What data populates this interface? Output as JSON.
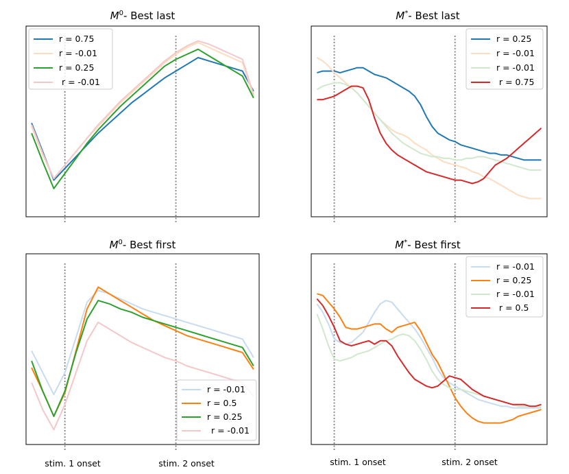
{
  "colors": {
    "blue": "#1f77b4",
    "orange": "#ff7f0e",
    "green": "#2ca02c",
    "red": "#d62728",
    "blue_faint": "#c6dbef",
    "orange_faint": "#fddcc0",
    "green_faint": "#cfe8cc",
    "red_faint": "#f4c7c8",
    "onset_line": "#808080"
  },
  "x_labels": {
    "stim1": "stim. 1 onset",
    "stim2": "stim. 2 onset"
  },
  "chart_data": [
    {
      "type": "line",
      "title": "- Best last",
      "title_math": {
        "base": "M",
        "sup": "0"
      },
      "x": [
        0,
        1,
        2,
        3,
        4,
        5,
        6,
        7,
        8,
        9,
        10,
        11,
        12,
        13,
        14,
        15,
        16,
        17,
        18,
        19,
        20
      ],
      "xlim": [
        -0.5,
        20.5
      ],
      "ylim": [
        0,
        1
      ],
      "onsets": [
        3,
        13
      ],
      "legend_position": "upper-left",
      "series": [
        {
          "name": "r = 0.75",
          "color": "blue",
          "values": [
            0.49,
            0.32,
            0.15,
            0.22,
            0.29,
            0.36,
            0.43,
            0.49,
            0.55,
            0.61,
            0.66,
            0.71,
            0.76,
            0.8,
            0.84,
            0.88,
            0.86,
            0.84,
            0.82,
            0.8,
            0.68
          ]
        },
        {
          "name": "r = -0.01",
          "color": "orange_faint",
          "values": [
            0.47,
            0.3,
            0.16,
            0.24,
            0.32,
            0.4,
            0.47,
            0.54,
            0.61,
            0.67,
            0.73,
            0.79,
            0.85,
            0.9,
            0.94,
            0.97,
            0.94,
            0.91,
            0.88,
            0.85,
            0.65
          ]
        },
        {
          "name": "r = 0.25",
          "color": "green",
          "values": [
            0.43,
            0.26,
            0.1,
            0.19,
            0.28,
            0.37,
            0.45,
            0.52,
            0.59,
            0.65,
            0.71,
            0.77,
            0.83,
            0.87,
            0.9,
            0.93,
            0.89,
            0.85,
            0.81,
            0.77,
            0.64
          ]
        },
        {
          "name": "r = -0.01",
          "color": "red_faint",
          "values": [
            0.48,
            0.31,
            0.16,
            0.24,
            0.32,
            0.4,
            0.48,
            0.55,
            0.62,
            0.68,
            0.74,
            0.8,
            0.86,
            0.91,
            0.95,
            0.98,
            0.96,
            0.93,
            0.9,
            0.87,
            0.66
          ]
        }
      ]
    },
    {
      "type": "line",
      "title": "- Best last",
      "title_math": {
        "base": "M",
        "sup": "*"
      },
      "x": [
        0,
        1,
        2,
        3,
        4,
        5,
        6,
        7,
        8,
        9,
        10,
        11,
        12,
        13,
        14,
        15,
        16,
        17,
        18,
        19,
        20,
        21,
        22,
        23,
        24,
        25,
        26,
        27,
        28,
        29,
        30,
        31,
        32,
        33,
        34,
        35,
        36,
        37,
        38,
        39
      ],
      "xlim": [
        -1,
        40
      ],
      "ylim": [
        0,
        1
      ],
      "onsets": [
        3,
        24
      ],
      "legend_position": "upper-right",
      "series": [
        {
          "name": "r = 0.25",
          "color": "blue",
          "values": [
            0.79,
            0.8,
            0.8,
            0.8,
            0.79,
            0.8,
            0.81,
            0.82,
            0.82,
            0.8,
            0.78,
            0.77,
            0.76,
            0.74,
            0.72,
            0.7,
            0.68,
            0.65,
            0.6,
            0.53,
            0.47,
            0.43,
            0.41,
            0.39,
            0.38,
            0.36,
            0.35,
            0.34,
            0.33,
            0.32,
            0.31,
            0.31,
            0.3,
            0.3,
            0.29,
            0.28,
            0.27,
            0.27,
            0.27,
            0.27
          ]
        },
        {
          "name": "r = -0.01",
          "color": "orange_faint",
          "values": [
            0.88,
            0.86,
            0.83,
            0.79,
            0.76,
            0.73,
            0.7,
            0.67,
            0.63,
            0.59,
            0.55,
            0.51,
            0.48,
            0.45,
            0.43,
            0.42,
            0.4,
            0.37,
            0.35,
            0.33,
            0.3,
            0.28,
            0.26,
            0.25,
            0.24,
            0.23,
            0.22,
            0.2,
            0.19,
            0.17,
            0.16,
            0.14,
            0.12,
            0.1,
            0.08,
            0.06,
            0.05,
            0.04,
            0.04,
            0.04
          ]
        },
        {
          "name": "r = -0.01",
          "color": "green_faint",
          "values": [
            0.69,
            0.71,
            0.72,
            0.73,
            0.73,
            0.72,
            0.7,
            0.67,
            0.63,
            0.59,
            0.55,
            0.51,
            0.47,
            0.43,
            0.4,
            0.37,
            0.35,
            0.33,
            0.31,
            0.3,
            0.29,
            0.29,
            0.28,
            0.28,
            0.27,
            0.27,
            0.28,
            0.28,
            0.29,
            0.29,
            0.28,
            0.27,
            0.26,
            0.25,
            0.24,
            0.23,
            0.22,
            0.21,
            0.21,
            0.21
          ]
        },
        {
          "name": "r = 0.75",
          "color": "red",
          "values": [
            0.63,
            0.63,
            0.64,
            0.65,
            0.67,
            0.69,
            0.71,
            0.71,
            0.7,
            0.63,
            0.52,
            0.43,
            0.37,
            0.33,
            0.3,
            0.28,
            0.26,
            0.24,
            0.22,
            0.2,
            0.19,
            0.18,
            0.17,
            0.16,
            0.15,
            0.15,
            0.14,
            0.13,
            0.14,
            0.16,
            0.2,
            0.24,
            0.26,
            0.28,
            0.31,
            0.34,
            0.37,
            0.4,
            0.43,
            0.46
          ]
        }
      ]
    },
    {
      "type": "line",
      "title": "- Best first",
      "title_math": {
        "base": "M",
        "sup": "0"
      },
      "x": [
        0,
        1,
        2,
        3,
        4,
        5,
        6,
        7,
        8,
        9,
        10,
        11,
        12,
        13,
        14,
        15,
        16,
        17,
        18,
        19,
        20
      ],
      "xlim": [
        -0.5,
        20.5
      ],
      "ylim": [
        0,
        1
      ],
      "onsets": [
        3,
        13
      ],
      "legend_position": "lower-right",
      "series": [
        {
          "name": "r = -0.01",
          "color": "blue_faint",
          "values": [
            0.49,
            0.36,
            0.23,
            0.36,
            0.57,
            0.78,
            0.85,
            0.83,
            0.8,
            0.77,
            0.74,
            0.72,
            0.7,
            0.68,
            0.66,
            0.64,
            0.62,
            0.6,
            0.58,
            0.56,
            0.45
          ]
        },
        {
          "name": "r = 0.5",
          "color": "orange",
          "values": [
            0.39,
            0.25,
            0.1,
            0.24,
            0.49,
            0.74,
            0.87,
            0.83,
            0.79,
            0.75,
            0.71,
            0.67,
            0.64,
            0.61,
            0.58,
            0.56,
            0.54,
            0.52,
            0.5,
            0.48,
            0.38
          ]
        },
        {
          "name": "r = 0.25",
          "color": "green",
          "values": [
            0.43,
            0.25,
            0.1,
            0.25,
            0.48,
            0.68,
            0.79,
            0.77,
            0.74,
            0.72,
            0.69,
            0.67,
            0.65,
            0.63,
            0.61,
            0.59,
            0.57,
            0.55,
            0.53,
            0.51,
            0.4
          ]
        },
        {
          "name": "r = -0.01",
          "color": "red_faint",
          "values": [
            0.3,
            0.14,
            0.02,
            0.17,
            0.36,
            0.55,
            0.66,
            0.62,
            0.58,
            0.54,
            0.51,
            0.48,
            0.45,
            0.43,
            0.4,
            0.38,
            0.36,
            0.34,
            0.32,
            0.3,
            0.22
          ]
        }
      ]
    },
    {
      "type": "line",
      "title": "- Best first",
      "title_math": {
        "base": "M",
        "sup": "*"
      },
      "x": [
        0,
        1,
        2,
        3,
        4,
        5,
        6,
        7,
        8,
        9,
        10,
        11,
        12,
        13,
        14,
        15,
        16,
        17,
        18,
        19,
        20,
        21,
        22,
        23,
        24,
        25,
        26,
        27,
        28,
        29,
        30,
        31,
        32,
        33,
        34,
        35,
        36,
        37,
        38,
        39
      ],
      "xlim": [
        -1,
        40
      ],
      "ylim": [
        0,
        1
      ],
      "onsets": [
        3,
        24
      ],
      "legend_position": "upper-right",
      "series": [
        {
          "name": "r = -0.01",
          "color": "blue_faint",
          "values": [
            0.77,
            0.72,
            0.65,
            0.56,
            0.54,
            0.53,
            0.54,
            0.57,
            0.6,
            0.66,
            0.72,
            0.77,
            0.79,
            0.78,
            0.74,
            0.7,
            0.66,
            0.62,
            0.57,
            0.51,
            0.45,
            0.38,
            0.33,
            0.3,
            0.28,
            0.26,
            0.24,
            0.22,
            0.2,
            0.19,
            0.18,
            0.17,
            0.16,
            0.16,
            0.15,
            0.15,
            0.15,
            0.15,
            0.15,
            0.15
          ]
        },
        {
          "name": "r = 0.25",
          "color": "orange",
          "values": [
            0.83,
            0.82,
            0.78,
            0.74,
            0.69,
            0.63,
            0.62,
            0.62,
            0.63,
            0.64,
            0.65,
            0.65,
            0.62,
            0.6,
            0.63,
            0.64,
            0.65,
            0.66,
            0.61,
            0.54,
            0.47,
            0.42,
            0.35,
            0.28,
            0.21,
            0.16,
            0.12,
            0.09,
            0.07,
            0.06,
            0.06,
            0.06,
            0.06,
            0.07,
            0.08,
            0.1,
            0.11,
            0.12,
            0.13,
            0.14
          ]
        },
        {
          "name": "r = -0.01",
          "color": "green_faint",
          "values": [
            0.71,
            0.62,
            0.52,
            0.44,
            0.43,
            0.44,
            0.45,
            0.47,
            0.48,
            0.49,
            0.51,
            0.53,
            0.55,
            0.56,
            0.58,
            0.59,
            0.58,
            0.55,
            0.5,
            0.44,
            0.37,
            0.32,
            0.29,
            0.27,
            0.26,
            0.26,
            0.25,
            0.24,
            0.23,
            0.22,
            0.21,
            0.2,
            0.19,
            0.18,
            0.17,
            0.16,
            0.16,
            0.16,
            0.16,
            0.16
          ]
        },
        {
          "name": "r = 0.5",
          "color": "red",
          "values": [
            0.8,
            0.76,
            0.7,
            0.63,
            0.55,
            0.53,
            0.52,
            0.53,
            0.54,
            0.55,
            0.53,
            0.55,
            0.55,
            0.52,
            0.46,
            0.41,
            0.36,
            0.32,
            0.3,
            0.28,
            0.27,
            0.28,
            0.31,
            0.34,
            0.33,
            0.32,
            0.29,
            0.26,
            0.24,
            0.22,
            0.21,
            0.2,
            0.19,
            0.18,
            0.17,
            0.17,
            0.17,
            0.16,
            0.16,
            0.17
          ]
        }
      ]
    }
  ]
}
